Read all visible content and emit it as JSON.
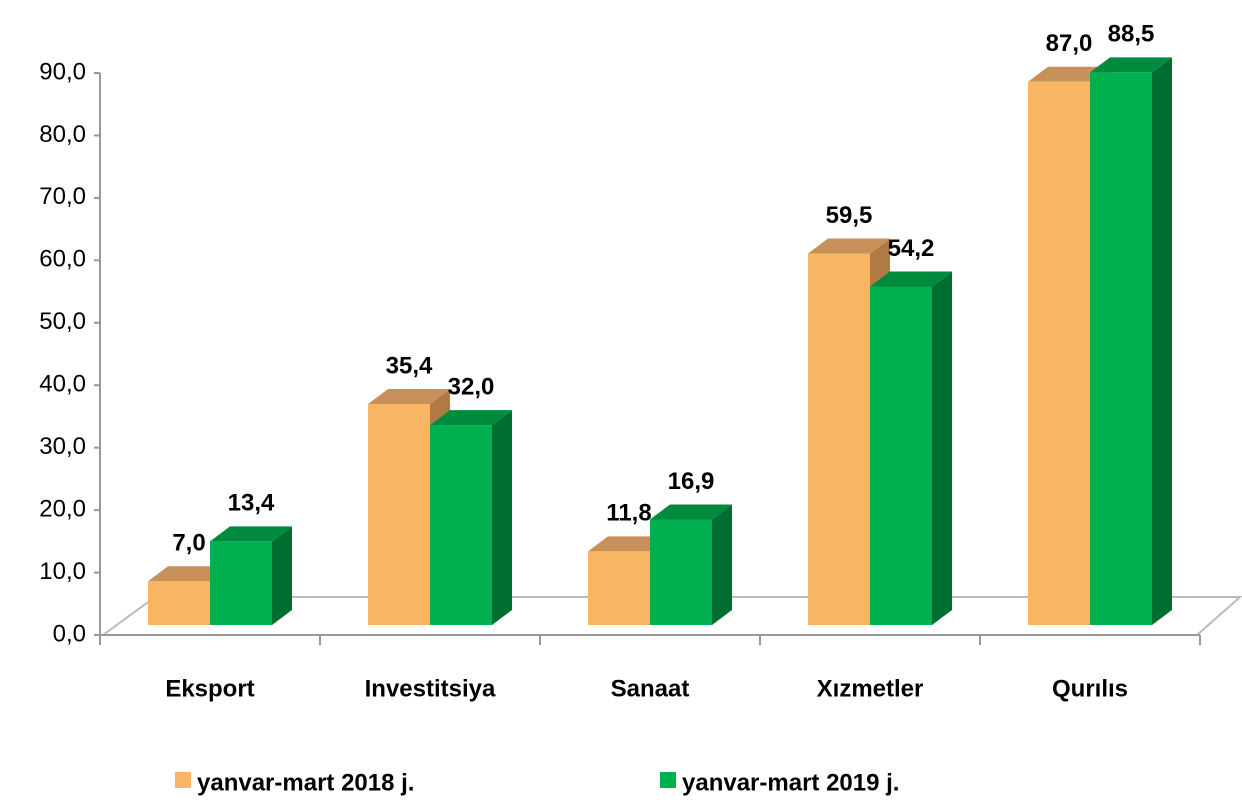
{
  "chart_data": {
    "type": "bar3d",
    "categories": [
      "Eksport",
      "Investitsiya",
      "Sanaat",
      "Xızmetler",
      "Qurılıs"
    ],
    "series": [
      {
        "name": "yanvar-mart 2018 j.",
        "color": "#F8B563",
        "values": [
          7.0,
          35.4,
          11.8,
          59.5,
          87.0
        ],
        "value_labels": [
          "7,0",
          "35,4",
          "11,8",
          "59,5",
          "87,0"
        ]
      },
      {
        "name": "yanvar-mart 2019 j.",
        "color": "#00B050",
        "values": [
          13.4,
          32.0,
          16.9,
          54.2,
          88.5
        ],
        "value_labels": [
          "13,4",
          "32,0",
          "16,9",
          "54,2",
          "88,5"
        ]
      }
    ],
    "ylim": [
      0,
      90
    ],
    "yticks": [
      {
        "value": 0,
        "label": "0,0"
      },
      {
        "value": 10,
        "label": "10,0"
      },
      {
        "value": 20,
        "label": "20,0"
      },
      {
        "value": 30,
        "label": "30,0"
      },
      {
        "value": 40,
        "label": "40,0"
      },
      {
        "value": 50,
        "label": "50,0"
      },
      {
        "value": 60,
        "label": "60,0"
      },
      {
        "value": 70,
        "label": "70,0"
      },
      {
        "value": 80,
        "label": "80,0"
      },
      {
        "value": 90,
        "label": "90,0"
      }
    ]
  }
}
